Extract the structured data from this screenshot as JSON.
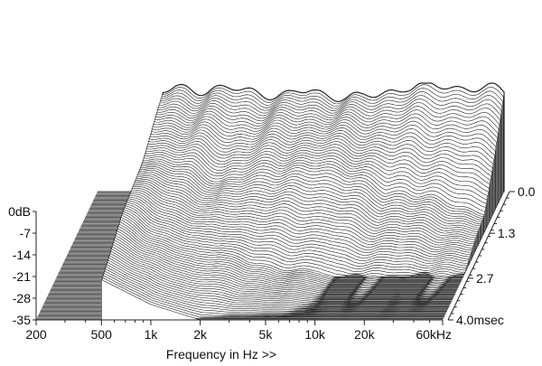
{
  "chart_data": {
    "type": "waterfall",
    "xlabel": "Frequency in Hz >>",
    "x_ticks": [
      "200",
      "500",
      "1k",
      "2k",
      "5k",
      "10k",
      "20k",
      "60kHz"
    ],
    "x_tick_values": [
      200,
      500,
      1000,
      2000,
      5000,
      10000,
      20000,
      60000
    ],
    "x_range": [
      200,
      60000
    ],
    "x_scale": "log",
    "y_ticks": [
      "0dB",
      "-7",
      "-14",
      "-21",
      "-28",
      "-35"
    ],
    "y_tick_values": [
      0,
      -7,
      -14,
      -21,
      -28,
      -35
    ],
    "y_range": [
      -35,
      0
    ],
    "z_ticks": [
      "0.0",
      "1.3",
      "2.7",
      "4.0msec"
    ],
    "z_tick_values": [
      0.0,
      1.3,
      2.7,
      4.0
    ],
    "z_range": [
      0.0,
      4.0
    ],
    "colors": {
      "line": "#222222",
      "floor": "#7a7a7a",
      "surface": "#ffffff"
    },
    "slices": 90,
    "series": [
      {
        "slice_time_ms": 0.0,
        "x": [
          500,
          600,
          800,
          1000,
          1200,
          1500,
          2000,
          2500,
          3000,
          4000,
          5000,
          6000,
          8000,
          10000,
          12000,
          15000,
          20000,
          25000,
          30000,
          40000,
          50000,
          60000
        ],
        "y": [
          -3,
          -2,
          -2,
          -1.5,
          -2,
          -2.5,
          -3,
          -3.5,
          -4,
          -2.5,
          -3.5,
          -4,
          -5,
          -4,
          -2.5,
          -1,
          -1.5,
          -1,
          -1,
          -1.5,
          -2,
          -3
        ]
      },
      {
        "slice_time_ms": 1.3,
        "x": [
          500,
          700,
          1000,
          1500,
          2000,
          3000,
          5000,
          8000,
          10000,
          15000,
          20000,
          30000,
          60000
        ],
        "y": [
          -10,
          -12,
          -14,
          -18,
          -17,
          -14,
          -15,
          -15,
          -17,
          -22,
          -21,
          -24,
          -28
        ]
      },
      {
        "slice_time_ms": 2.7,
        "x": [
          500,
          700,
          1000,
          1500,
          2000,
          3000,
          5000,
          8000,
          10000,
          20000,
          60000
        ],
        "y": [
          -15,
          -20,
          -24,
          -27,
          -26,
          -30,
          -32,
          -33,
          -35,
          -35,
          -35
        ]
      },
      {
        "slice_time_ms": 4.0,
        "x": [
          500,
          1000,
          2000,
          60000
        ],
        "y": [
          -22,
          -30,
          -35,
          -35
        ]
      }
    ]
  }
}
